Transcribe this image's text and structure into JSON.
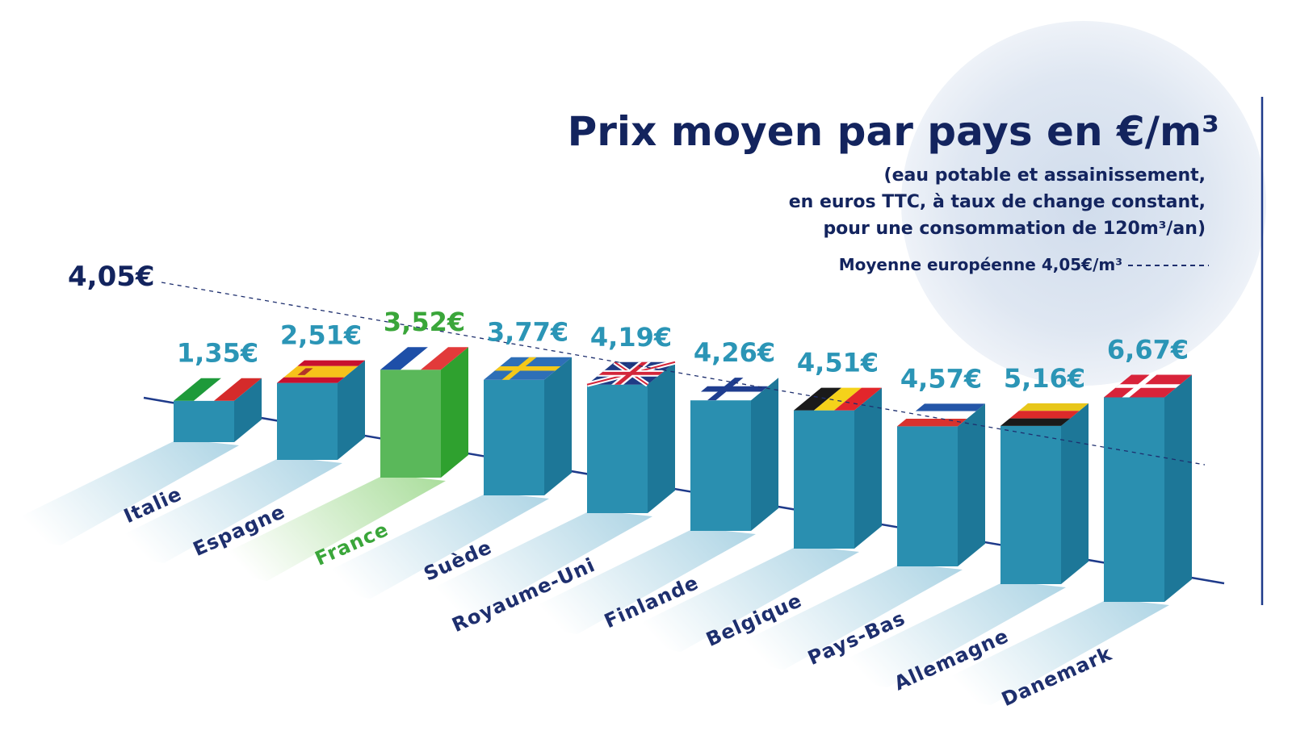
{
  "header": {
    "title": "Prix moyen par pays en €/m³",
    "subtitle_lines": [
      "(eau potable et assainissement,",
      "en euros TTC, à taux de change constant,",
      "pour une consommation de 120m³/an)"
    ],
    "legend_label": "Moyenne européenne 4,05€/m³"
  },
  "colors": {
    "title": "#13245e",
    "value": "#2b95b6",
    "highlight": "#3aa63a",
    "bar_front": "#2a8fb0",
    "bar_side": "#1d7798",
    "bar_front_highlight": "#5ab85a",
    "bar_side_highlight": "#2fa12f",
    "label": "#1e2f6e",
    "shadow": "#b8dbe9",
    "shadow_highlight": "#b7e3b0"
  },
  "chart_data": {
    "type": "bar",
    "title": "Prix moyen par pays en €/m³",
    "unit": "€/m³",
    "categories": [
      "Italie",
      "Espagne",
      "France",
      "Suède",
      "Royaume-Uni",
      "Finlande",
      "Belgique",
      "Pays-Bas",
      "Allemagne",
      "Danemark"
    ],
    "values": [
      1.35,
      2.51,
      3.52,
      3.77,
      4.19,
      4.26,
      4.51,
      4.57,
      5.16,
      6.67
    ],
    "value_labels": [
      "1,35€",
      "2,51€",
      "3,52€",
      "3,77€",
      "4,19€",
      "4,26€",
      "4,51€",
      "4,57€",
      "5,16€",
      "6,67€"
    ],
    "flags": [
      "italy-flag",
      "spain-flag",
      "france-flag",
      "sweden-flag",
      "uk-flag",
      "finland-flag",
      "belgium-flag",
      "netherlands-flag",
      "germany-flag",
      "denmark-flag"
    ],
    "highlight": "France",
    "reference_line": {
      "value": 4.05,
      "label": "4,05€"
    }
  }
}
